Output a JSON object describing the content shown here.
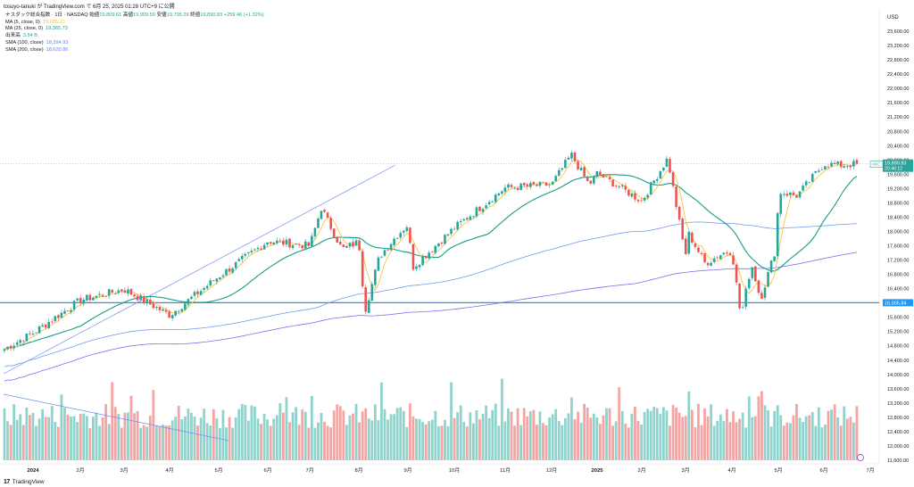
{
  "header": {
    "line": "tosuyo-tanuki が TradingView.com で 6月 25, 2025 01:28 UTC+9 に公開"
  },
  "legend": {
    "symbol": "ナスダック総合指数 · 1日 · NASDAQ",
    "open_label": "始値",
    "open": "19,809.61",
    "high_label": "高値",
    "high": "19,909.59",
    "low_label": "安値",
    "low": "19,795.29",
    "close_label": "終値",
    "close": "19,890.83",
    "change": "+259.46 (+1.32%)",
    "indicators": [
      {
        "label": "MA (5, close, 0)",
        "value": "19,685.20",
        "color": "#f6c343"
      },
      {
        "label": "MA (25, close, 0)",
        "value": "19,365.73",
        "color": "#149e86"
      },
      {
        "label": "出来高",
        "value": "3.94 B",
        "color": "#26a69a"
      },
      {
        "label": "SMA (100, close)",
        "value": "18,394.93",
        "color": "#5b8cf0"
      },
      {
        "label": "SMA (200, close)",
        "value": "18,620.86",
        "color": "#7b6ff0"
      }
    ]
  },
  "colors": {
    "up": "#26a69a",
    "down": "#ef5350",
    "vol_up": "#8fd3cc",
    "vol_down": "#f4a5a3",
    "ma5": "#f6c343",
    "ma25": "#149e86",
    "sma100": "#6f9bf2",
    "sma200": "#7b6ff0",
    "hline": "#2196f3",
    "trend": "#6f8ff2"
  },
  "price_tags": {
    "symbol": "IXIC",
    "last": "19,890.83",
    "countdown": "20:46:12",
    "hline": "16,005.84"
  },
  "footer": {
    "brand": "TradingView"
  },
  "chart_data": {
    "type": "candlestick",
    "currency": "USD",
    "y_ticks": [
      11600,
      12000,
      12400,
      12800,
      13200,
      13600,
      14000,
      14400,
      14800,
      15200,
      15600,
      16000,
      16400,
      16800,
      17200,
      17600,
      18000,
      18400,
      18800,
      19200,
      19600,
      20000,
      20400,
      20800,
      21200,
      21600,
      22000,
      22400,
      22800,
      23200,
      23600
    ],
    "ylim": [
      11500,
      24200
    ],
    "x_labels": [
      "2024",
      "2月",
      "3月",
      "4月",
      "5月",
      "6月",
      "7月",
      "8月",
      "9月",
      "10月",
      "11月",
      "12月",
      "2025",
      "2月",
      "3月",
      "4月",
      "5月",
      "6月",
      "7月"
    ],
    "monthly_closes": [
      {
        "month": "2024-01",
        "close": 15160
      },
      {
        "month": "2024-02",
        "close": 16080
      },
      {
        "month": "2024-03",
        "close": 16380
      },
      {
        "month": "2024-04",
        "close": 15660
      },
      {
        "month": "2024-05",
        "close": 16740
      },
      {
        "month": "2024-06",
        "close": 17730
      },
      {
        "month": "2024-07",
        "close": 17600
      },
      {
        "month": "2024-08",
        "close": 17710
      },
      {
        "month": "2024-09",
        "close": 18190
      },
      {
        "month": "2024-10",
        "close": 18100
      },
      {
        "month": "2024-11",
        "close": 19220
      },
      {
        "month": "2024-12",
        "close": 19310
      },
      {
        "month": "2025-01",
        "close": 19630
      },
      {
        "month": "2025-02",
        "close": 18850
      },
      {
        "month": "2025-03",
        "close": 17300
      },
      {
        "month": "2025-04",
        "close": 17450
      },
      {
        "month": "2025-05",
        "close": 19110
      },
      {
        "month": "2025-06",
        "close": 19890
      }
    ],
    "horizontal_line": 16005.84,
    "last_close": 19890.83
  }
}
